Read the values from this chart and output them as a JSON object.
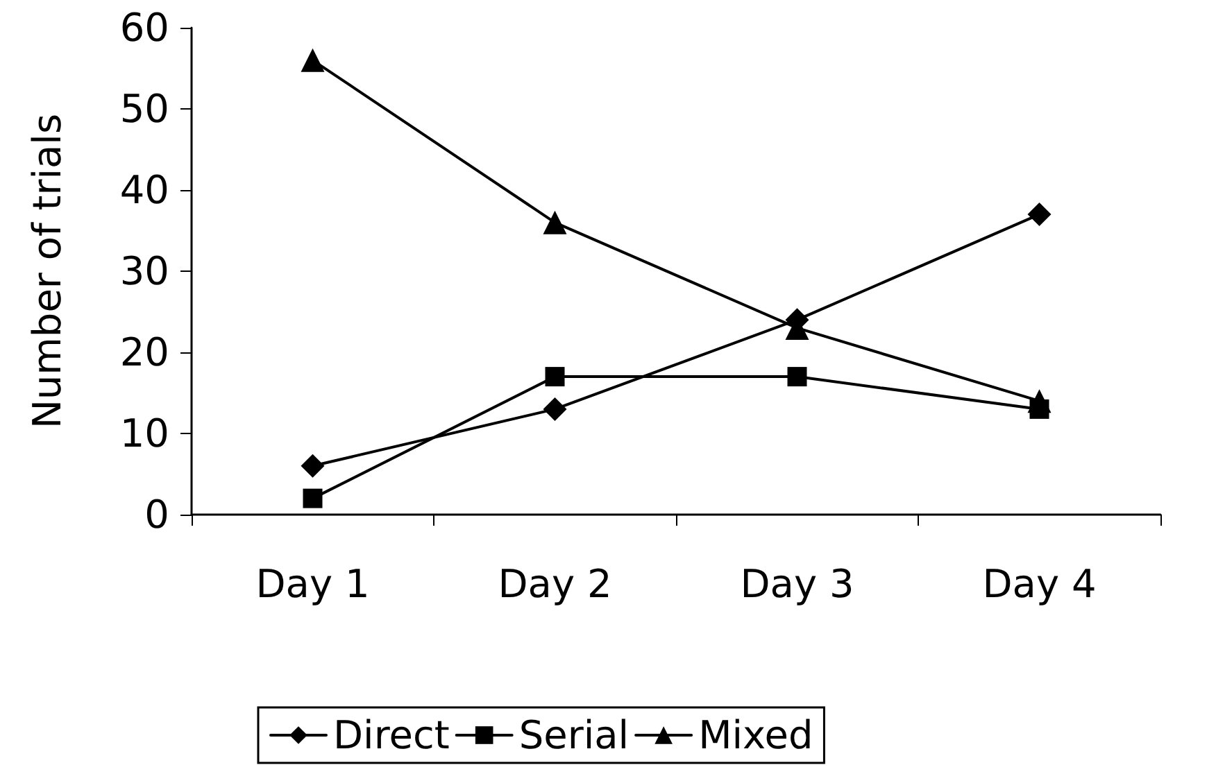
{
  "chart_data": {
    "type": "line",
    "ylabel": "Number of trials",
    "categories": [
      "Day 1",
      "Day 2",
      "Day 3",
      "Day 4"
    ],
    "series": [
      {
        "name": "Direct",
        "color": "#000000",
        "marker": "diamond",
        "values": [
          6,
          13,
          24,
          37
        ]
      },
      {
        "name": "Serial",
        "color": "#000000",
        "marker": "square",
        "values": [
          2,
          17,
          17,
          13
        ]
      },
      {
        "name": "Mixed",
        "color": "#000000",
        "marker": "triangle",
        "values": [
          56,
          36,
          23,
          14
        ]
      }
    ],
    "ylim": [
      0,
      60
    ],
    "yticks": [
      0,
      10,
      20,
      30,
      40,
      50,
      60
    ],
    "grid": false,
    "legend": "bottom",
    "line_style": "solid"
  }
}
